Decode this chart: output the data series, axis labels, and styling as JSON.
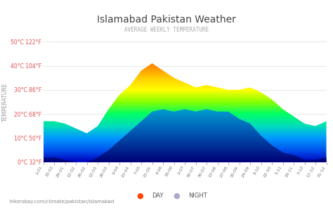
{
  "title": "Islamabad Pakistan Weather",
  "subtitle": "AVERAGE WEEKLY TEMPERATURE",
  "ylabel": "TEMPERATURE",
  "footer": "hikersbay.com/climate/pakistan/islamabad",
  "yticks": [
    0,
    10,
    20,
    30,
    40,
    50
  ],
  "ylabels": [
    "0°C 32°F",
    "10°C 50°F",
    "20°C 68°F",
    "30°C 86°F",
    "40°C 104°F",
    "50°C 122°F"
  ],
  "xtick_labels": [
    "1-01",
    "15-01",
    "29-01",
    "12-02",
    "26-02",
    "12-03",
    "26-03",
    "9-04",
    "23-04",
    "7-05",
    "21-05",
    "4-06",
    "18-06",
    "2-07",
    "16-07",
    "30-07",
    "13-08",
    "27-08",
    "10-09",
    "24-09",
    "8-10",
    "22-10",
    "5-11",
    "19-11",
    "3-12",
    "17-12",
    "31-12"
  ],
  "ylim": [
    0,
    50
  ],
  "title_color": "#444444",
  "subtitle_color": "#888888",
  "ytick_color": "#e05050",
  "bg_color": "#ffffff",
  "day_data": [
    17,
    17,
    16,
    14,
    12,
    15,
    22,
    28,
    32,
    38,
    41,
    38,
    35,
    33,
    31,
    32,
    31,
    30,
    30,
    31,
    29,
    26,
    22,
    19,
    16,
    15,
    17
  ],
  "night_data": [
    2,
    2,
    1,
    0,
    0,
    2,
    5,
    9,
    13,
    17,
    21,
    22,
    21,
    22,
    21,
    22,
    21,
    21,
    18,
    16,
    11,
    7,
    4,
    3,
    1,
    1,
    2
  ],
  "rainbow_colors": [
    "#0000aa",
    "#0033cc",
    "#0077ee",
    "#00aaff",
    "#00ccaa",
    "#00ee55",
    "#66ff00",
    "#aaff00",
    "#ffff00",
    "#ffcc00",
    "#ff8800",
    "#ff4400",
    "#ff0000"
  ],
  "night_color": "#aaaacc"
}
